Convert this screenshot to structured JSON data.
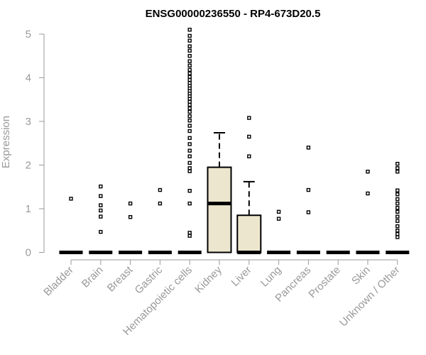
{
  "chart_data": {
    "type": "box",
    "title": "ENSG00000236550 - RP4-673D20.5",
    "xlabel": "",
    "ylabel": "Expression",
    "ylim": [
      0,
      5.15
    ],
    "yticks": [
      0,
      1,
      2,
      3,
      4,
      5
    ],
    "categories": [
      "Bladder",
      "Brain",
      "Breast",
      "Gastric",
      "Hematopoietic cells",
      "Kidney",
      "Liver",
      "Lung",
      "Pancreas",
      "Prostate",
      "Skin",
      "Unknown / Other"
    ],
    "colors": {
      "box_fill": "#ede6cf",
      "stroke": "#000000",
      "axis": "#999999",
      "title": "#000000"
    },
    "boxes": [
      {
        "category": "Bladder",
        "q1": 0,
        "median": 0,
        "q3": 0,
        "whisker_low": 0,
        "whisker_high": 0,
        "outliers": [
          1.23
        ]
      },
      {
        "category": "Brain",
        "q1": 0,
        "median": 0,
        "q3": 0,
        "whisker_low": 0,
        "whisker_high": 0,
        "outliers": [
          0.47,
          0.82,
          0.96,
          1.08,
          1.29,
          1.51
        ]
      },
      {
        "category": "Breast",
        "q1": 0,
        "median": 0,
        "q3": 0,
        "whisker_low": 0,
        "whisker_high": 0,
        "outliers": [
          0.81,
          1.12
        ]
      },
      {
        "category": "Gastric",
        "q1": 0,
        "median": 0,
        "q3": 0,
        "whisker_low": 0,
        "whisker_high": 0,
        "outliers": [
          1.12,
          1.43
        ]
      },
      {
        "category": "Hematopoietic cells",
        "q1": 0,
        "median": 0,
        "q3": 0,
        "whisker_low": 0,
        "whisker_high": 0,
        "outliers": [
          0.38,
          0.45,
          1.12,
          1.41,
          1.86,
          1.93,
          2.05,
          2.2,
          2.33,
          2.48,
          2.62,
          2.78,
          2.9,
          3.02,
          3.12,
          3.22,
          3.3,
          3.38,
          3.45,
          3.52,
          3.58,
          3.64,
          3.7,
          3.76,
          3.82,
          3.88,
          3.95,
          4.02,
          4.1,
          4.18,
          4.28,
          4.38,
          4.5,
          4.62,
          4.72,
          4.85,
          4.96,
          5.1
        ]
      },
      {
        "category": "Kidney",
        "q1": 0,
        "median": 1.12,
        "q3": 1.95,
        "whisker_low": 0,
        "whisker_high": 2.74,
        "outliers": []
      },
      {
        "category": "Liver",
        "q1": 0,
        "median": 0,
        "q3": 0.85,
        "whisker_low": 0,
        "whisker_high": 1.62,
        "outliers": [
          2.2,
          2.65,
          3.08
        ]
      },
      {
        "category": "Lung",
        "q1": 0,
        "median": 0,
        "q3": 0,
        "whisker_low": 0,
        "whisker_high": 0,
        "outliers": [
          0.77,
          0.93
        ]
      },
      {
        "category": "Pancreas",
        "q1": 0,
        "median": 0,
        "q3": 0,
        "whisker_low": 0,
        "whisker_high": 0,
        "outliers": [
          0.92,
          1.43,
          2.4
        ]
      },
      {
        "category": "Prostate",
        "q1": 0,
        "median": 0,
        "q3": 0,
        "whisker_low": 0,
        "whisker_high": 0,
        "outliers": []
      },
      {
        "category": "Skin",
        "q1": 0,
        "median": 0,
        "q3": 0,
        "whisker_low": 0,
        "whisker_high": 0,
        "outliers": [
          1.35,
          1.85
        ]
      },
      {
        "category": "Unknown / Other",
        "q1": 0,
        "median": 0,
        "q3": 0,
        "whisker_low": 0,
        "whisker_high": 0,
        "outliers": [
          0.35,
          0.42,
          0.5,
          0.6,
          0.72,
          0.82,
          0.93,
          1.02,
          1.12,
          1.22,
          1.33,
          1.42,
          1.85,
          1.93,
          2.03
        ]
      }
    ]
  }
}
